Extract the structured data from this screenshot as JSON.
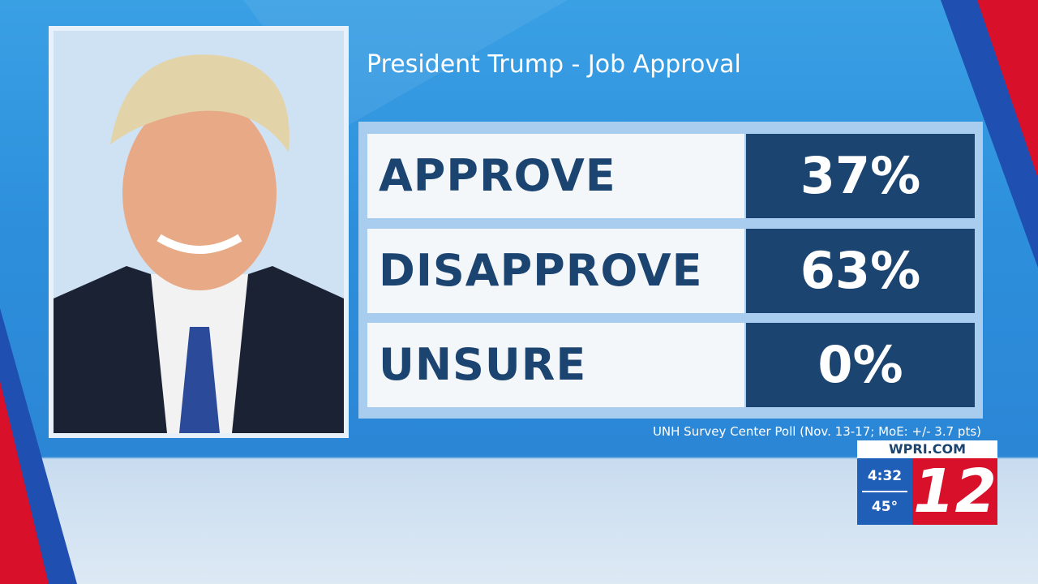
{
  "header": {
    "title": "President Trump - Job Approval"
  },
  "table": {
    "rows": [
      [
        "APPROVE",
        "37%"
      ],
      [
        "DISAPPROVE",
        "63%"
      ],
      [
        "UNSURE",
        "0%"
      ]
    ]
  },
  "source": "UNH Survey Center Poll (Nov. 13-17; MoE: +/- 3.7 pts)",
  "logo": {
    "site": "WPRI.COM",
    "time": "4:32",
    "temperature": "45°",
    "channel": "12"
  }
}
